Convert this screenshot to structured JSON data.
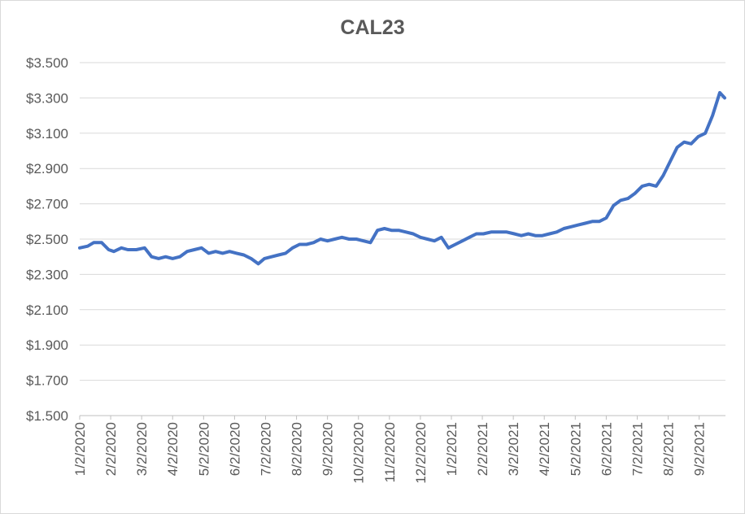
{
  "chart_data": {
    "type": "line",
    "title": "CAL23",
    "xlabel": "",
    "ylabel": "",
    "ylim": [
      1.5,
      3.5
    ],
    "y_ticks": [
      "$1.500",
      "$1.700",
      "$1.900",
      "$2.100",
      "$2.300",
      "$2.500",
      "$2.700",
      "$2.900",
      "$3.100",
      "$3.300",
      "$3.500"
    ],
    "y_tick_values": [
      1.5,
      1.7,
      1.9,
      2.1,
      2.3,
      2.5,
      2.7,
      2.9,
      3.1,
      3.3,
      3.5
    ],
    "x_ticks": [
      "1/2/2020",
      "2/2/2020",
      "3/2/2020",
      "4/2/2020",
      "5/2/2020",
      "6/2/2020",
      "7/2/2020",
      "8/2/2020",
      "9/2/2020",
      "10/2/2020",
      "11/2/2020",
      "12/2/2020",
      "1/2/2021",
      "2/2/2021",
      "3/2/2021",
      "4/2/2021",
      "5/2/2021",
      "6/2/2021",
      "7/2/2021",
      "8/2/2021",
      "9/2/2021"
    ],
    "grid": true,
    "legend": "none",
    "line_color": "#4472c4",
    "series": [
      {
        "x": [
          "1/2/2020",
          "1/10/2020",
          "1/16/2020",
          "1/24/2020",
          "1/31/2020",
          "2/5/2020",
          "2/12/2020",
          "2/18/2020",
          "2/26/2020",
          "3/5/2020",
          "3/12/2020",
          "3/19/2020",
          "3/26/2020",
          "4/2/2020",
          "4/9/2020",
          "4/16/2020",
          "4/23/2020",
          "4/30/2020",
          "5/7/2020",
          "5/14/2020",
          "5/21/2020",
          "5/28/2020",
          "6/4/2020",
          "6/11/2020",
          "6/18/2020",
          "6/25/2020",
          "7/1/2020",
          "7/8/2020",
          "7/15/2020",
          "7/22/2020",
          "7/29/2020",
          "8/5/2020",
          "8/12/2020",
          "8/19/2020",
          "8/26/2020",
          "9/2/2020",
          "9/9/2020",
          "9/16/2020",
          "9/23/2020",
          "9/30/2020",
          "10/7/2020",
          "10/14/2020",
          "10/21/2020",
          "10/28/2020",
          "11/4/2020",
          "11/11/2020",
          "11/18/2020",
          "11/25/2020",
          "12/2/2020",
          "12/9/2020",
          "12/16/2020",
          "12/23/2020",
          "12/30/2020",
          "1/6/2021",
          "1/13/2021",
          "1/20/2021",
          "1/27/2021",
          "2/3/2021",
          "2/10/2021",
          "2/17/2021",
          "2/24/2021",
          "3/3/2021",
          "3/10/2021",
          "3/17/2021",
          "3/24/2021",
          "3/31/2021",
          "4/7/2021",
          "4/14/2021",
          "4/21/2021",
          "4/28/2021",
          "5/5/2021",
          "5/12/2021",
          "5/19/2021",
          "5/26/2021",
          "6/2/2021",
          "6/9/2021",
          "6/16/2021",
          "6/23/2021",
          "6/30/2021",
          "7/7/2021",
          "7/14/2021",
          "7/21/2021",
          "7/28/2021",
          "8/4/2021",
          "8/11/2021",
          "8/18/2021",
          "8/25/2021",
          "9/1/2021",
          "9/8/2021",
          "9/15/2021",
          "9/22/2021",
          "9/29/2021"
        ],
        "values": [
          2.45,
          2.46,
          2.48,
          2.48,
          2.44,
          2.43,
          2.45,
          2.44,
          2.44,
          2.45,
          2.4,
          2.39,
          2.4,
          2.39,
          2.4,
          2.43,
          2.44,
          2.45,
          2.42,
          2.43,
          2.42,
          2.43,
          2.42,
          2.41,
          2.39,
          2.36,
          2.39,
          2.4,
          2.41,
          2.42,
          2.45,
          2.47,
          2.47,
          2.48,
          2.5,
          2.49,
          2.5,
          2.51,
          2.5,
          2.5,
          2.49,
          2.48,
          2.55,
          2.56,
          2.55,
          2.55,
          2.54,
          2.53,
          2.51,
          2.5,
          2.49,
          2.51,
          2.45,
          2.47,
          2.49,
          2.51,
          2.53,
          2.53,
          2.54,
          2.54,
          2.54,
          2.53,
          2.52,
          2.53,
          2.52,
          2.52,
          2.53,
          2.54,
          2.56,
          2.57,
          2.58,
          2.59,
          2.6,
          2.6,
          2.62,
          2.69,
          2.72,
          2.73,
          2.76,
          2.8,
          2.81,
          2.8,
          2.86,
          2.94,
          3.02,
          3.05,
          3.04,
          3.08,
          3.1,
          3.2,
          3.33,
          3.3
        ]
      }
    ]
  }
}
